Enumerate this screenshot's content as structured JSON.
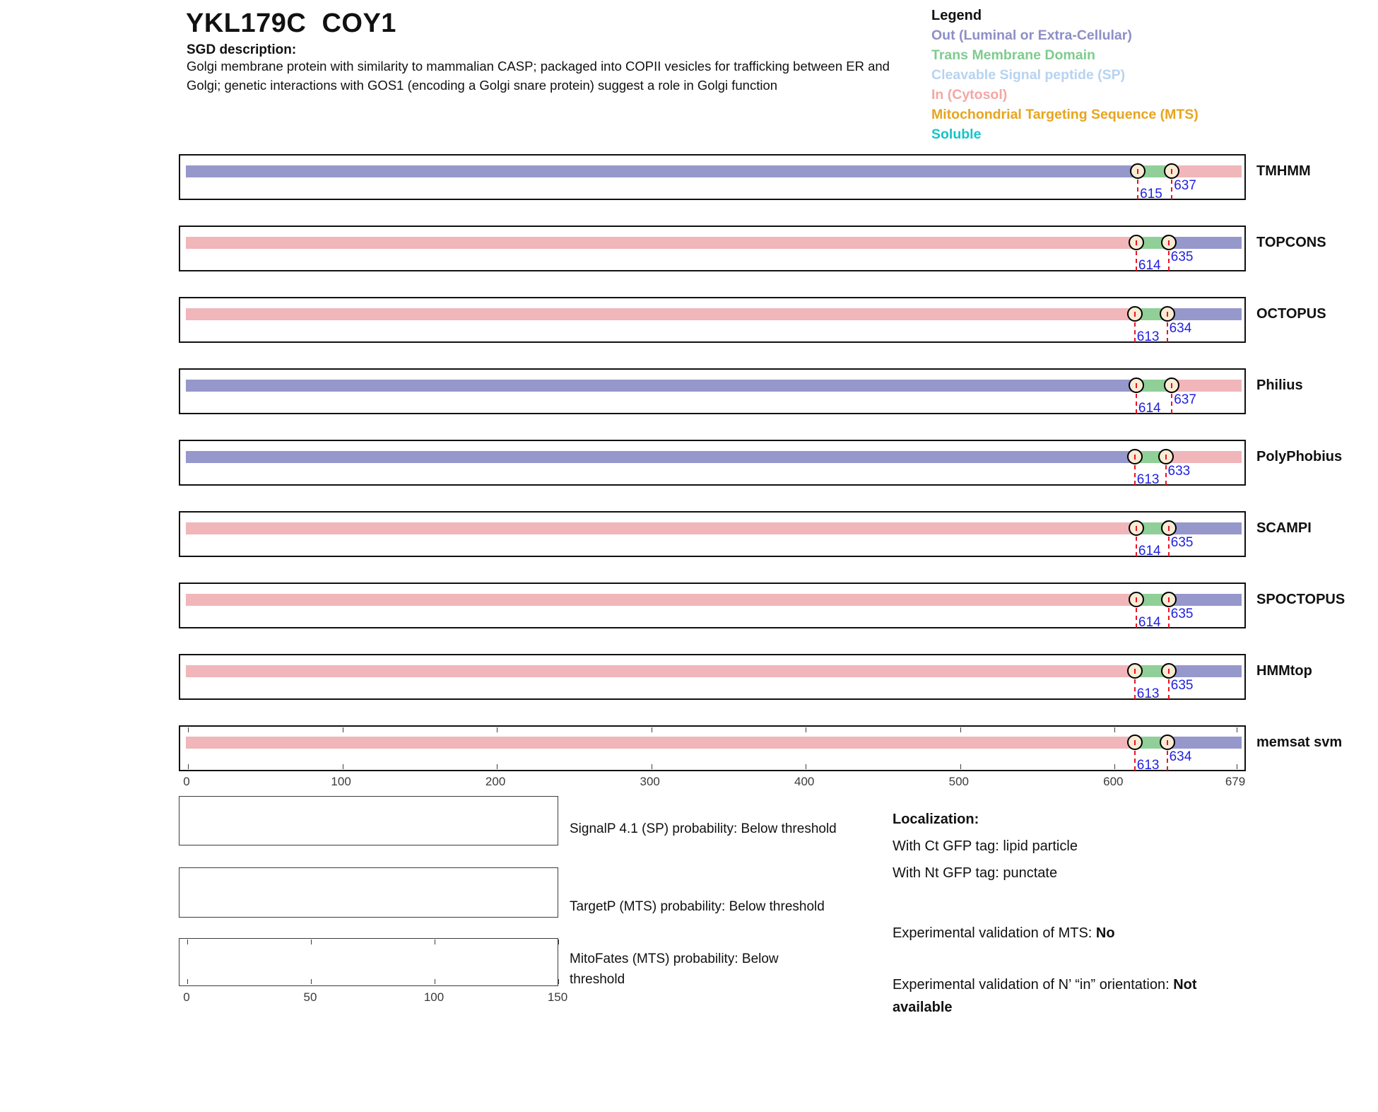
{
  "header": {
    "title": "YKL179C  COY1",
    "sgd_label": "SGD description:",
    "description": "Golgi membrane protein with similarity to mammalian CASP; packaged into COPII vesicles for trafficking between ER and Golgi; genetic interactions with GOS1 (encoding a Golgi snare protein) suggest a role in Golgi function"
  },
  "legend": {
    "title": "Legend",
    "items": [
      {
        "label": "Out (Luminal or Extra-Cellular)",
        "color": "#8d8fc7"
      },
      {
        "label": "Trans Membrane Domain",
        "color": "#7fcb8f"
      },
      {
        "label": "Cleavable Signal peptide (SP)",
        "color": "#b7d3f0"
      },
      {
        "label": "In (Cytosol)",
        "color": "#f3a7a5"
      },
      {
        "label": "Mitochondrial Targeting Sequence (MTS)",
        "color": "#e8a41e"
      },
      {
        "label": "Soluble",
        "color": "#13c4c9"
      }
    ]
  },
  "chart_data": {
    "type": "topology-tracks",
    "x_domain": [
      0,
      679
    ],
    "x_ticks": [
      0,
      100,
      200,
      300,
      400,
      500,
      600,
      679
    ],
    "region_colors": {
      "out": "#9697cb",
      "tm": "#90cf98",
      "in": "#f0b6ba"
    },
    "marker_fill": "#f8ecd4",
    "marker_stroke": "#000000",
    "boundary_line_color": "#ee1122",
    "boundary_text_color": "#1f1fe0",
    "tracks": [
      {
        "label": "TMHMM",
        "regions": [
          "out",
          "tm",
          "in"
        ],
        "tm_start": 615,
        "tm_end": 637,
        "has_axis_ticks": false
      },
      {
        "label": "TOPCONS",
        "regions": [
          "in",
          "tm",
          "out"
        ],
        "tm_start": 614,
        "tm_end": 635,
        "has_axis_ticks": false
      },
      {
        "label": "OCTOPUS",
        "regions": [
          "in",
          "tm",
          "out"
        ],
        "tm_start": 613,
        "tm_end": 634,
        "has_axis_ticks": false
      },
      {
        "label": "Philius",
        "regions": [
          "out",
          "tm",
          "in"
        ],
        "tm_start": 614,
        "tm_end": 637,
        "has_axis_ticks": false
      },
      {
        "label": "PolyPhobius",
        "regions": [
          "out",
          "tm",
          "in"
        ],
        "tm_start": 613,
        "tm_end": 633,
        "has_axis_ticks": false
      },
      {
        "label": "SCAMPI",
        "regions": [
          "in",
          "tm",
          "out"
        ],
        "tm_start": 614,
        "tm_end": 635,
        "has_axis_ticks": false
      },
      {
        "label": "SPOCTOPUS",
        "regions": [
          "in",
          "tm",
          "out"
        ],
        "tm_start": 614,
        "tm_end": 635,
        "has_axis_ticks": false
      },
      {
        "label": "HMMtop",
        "regions": [
          "in",
          "tm",
          "out"
        ],
        "tm_start": 613,
        "tm_end": 635,
        "has_axis_ticks": false
      },
      {
        "label": "memsat svm",
        "regions": [
          "in",
          "tm",
          "out"
        ],
        "tm_start": 613,
        "tm_end": 634,
        "has_axis_ticks": true
      }
    ]
  },
  "probability_plots": [
    {
      "label": "SignalP 4.1 (SP) probability: Below threshold"
    },
    {
      "label": "TargetP (MTS) probability: Below threshold"
    },
    {
      "label": "MitoFates (MTS) probability: Below threshold",
      "x_ticks": [
        0,
        50,
        100,
        150
      ]
    }
  ],
  "localization": {
    "title": "Localization:",
    "ct_line": "With Ct GFP tag: lipid particle",
    "nt_line": "With Nt GFP tag: punctate",
    "mts": {
      "label": "Experimental validation of MTS: ",
      "value": "No"
    },
    "orientation": {
      "label": "Experimental validation of N’ “in” orientation: ",
      "value": "Not available"
    }
  }
}
